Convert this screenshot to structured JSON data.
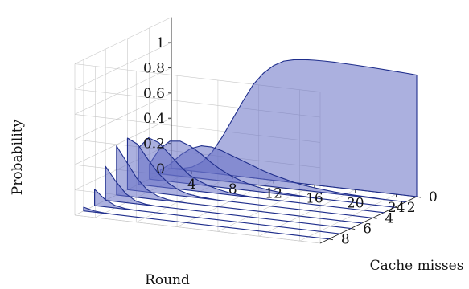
{
  "chart_data": {
    "type": "area",
    "title": "",
    "xlabel": "Round",
    "ylabel": "Cache misses",
    "zlabel": "Probability",
    "x_ticks": [
      "4",
      "8",
      "12",
      "16",
      "20",
      "24"
    ],
    "y_ticks": [
      "0",
      "2",
      "4",
      "6",
      "8"
    ],
    "z_ticks": [
      "0",
      "0.2",
      "0.4",
      "0.6",
      "0.8",
      "1"
    ],
    "xlim": [
      2,
      26
    ],
    "ylim": [
      0,
      8.8
    ],
    "zlim": [
      0,
      1.2
    ],
    "grid": true,
    "fill_color": "#6670c4",
    "line_color": "#1f2e8c",
    "rounds": [
      2,
      3,
      4,
      5,
      6,
      7,
      8,
      9,
      10,
      11,
      12,
      13,
      14,
      15,
      16,
      17,
      18,
      19,
      20,
      21,
      22,
      23,
      24,
      25,
      26
    ],
    "series": [
      {
        "cache_misses": 8,
        "values": [
          0.03,
          0.01,
          0.003,
          0,
          0,
          0,
          0,
          0,
          0,
          0,
          0,
          0,
          0,
          0,
          0,
          0,
          0,
          0,
          0,
          0,
          0,
          0,
          0,
          0,
          0
        ]
      },
      {
        "cache_misses": 7,
        "values": [
          0.13,
          0.06,
          0.02,
          0.005,
          0,
          0,
          0,
          0,
          0,
          0,
          0,
          0,
          0,
          0,
          0,
          0,
          0,
          0,
          0,
          0,
          0,
          0,
          0,
          0,
          0
        ]
      },
      {
        "cache_misses": 6,
        "values": [
          0.27,
          0.16,
          0.07,
          0.02,
          0.005,
          0,
          0,
          0,
          0,
          0,
          0,
          0,
          0,
          0,
          0,
          0,
          0,
          0,
          0,
          0,
          0,
          0,
          0,
          0,
          0
        ]
      },
      {
        "cache_misses": 5,
        "values": [
          0.39,
          0.27,
          0.15,
          0.07,
          0.03,
          0.01,
          0.003,
          0,
          0,
          0,
          0,
          0,
          0,
          0,
          0,
          0,
          0,
          0,
          0,
          0,
          0,
          0,
          0,
          0,
          0
        ]
      },
      {
        "cache_misses": 4,
        "values": [
          0.41,
          0.37,
          0.26,
          0.16,
          0.09,
          0.045,
          0.02,
          0.01,
          0.004,
          0,
          0,
          0,
          0,
          0,
          0,
          0,
          0,
          0,
          0,
          0,
          0,
          0,
          0,
          0,
          0
        ]
      },
      {
        "cache_misses": 3,
        "values": [
          0.29,
          0.38,
          0.35,
          0.27,
          0.19,
          0.12,
          0.08,
          0.05,
          0.03,
          0.015,
          0.008,
          0.004,
          0,
          0,
          0,
          0,
          0,
          0,
          0,
          0,
          0,
          0,
          0,
          0,
          0
        ]
      },
      {
        "cache_misses": 2,
        "values": [
          0.12,
          0.25,
          0.32,
          0.33,
          0.3,
          0.25,
          0.19,
          0.14,
          0.1,
          0.07,
          0.045,
          0.03,
          0.02,
          0.012,
          0.007,
          0.004,
          0,
          0,
          0,
          0,
          0,
          0,
          0,
          0,
          0
        ]
      },
      {
        "cache_misses": 1,
        "values": [
          0.03,
          0.09,
          0.17,
          0.23,
          0.26,
          0.26,
          0.24,
          0.21,
          0.18,
          0.15,
          0.12,
          0.095,
          0.075,
          0.055,
          0.04,
          0.03,
          0.022,
          0.015,
          0.01,
          0.007,
          0.005,
          0.003,
          0,
          0,
          0
        ]
      },
      {
        "cache_misses": 0,
        "values": [
          0.002,
          0.01,
          0.03,
          0.08,
          0.17,
          0.3,
          0.45,
          0.6,
          0.74,
          0.84,
          0.91,
          0.955,
          0.975,
          0.985,
          0.99,
          0.992,
          0.992,
          0.99,
          0.988,
          0.985,
          0.982,
          0.978,
          0.974,
          0.97,
          0.965
        ]
      }
    ]
  }
}
